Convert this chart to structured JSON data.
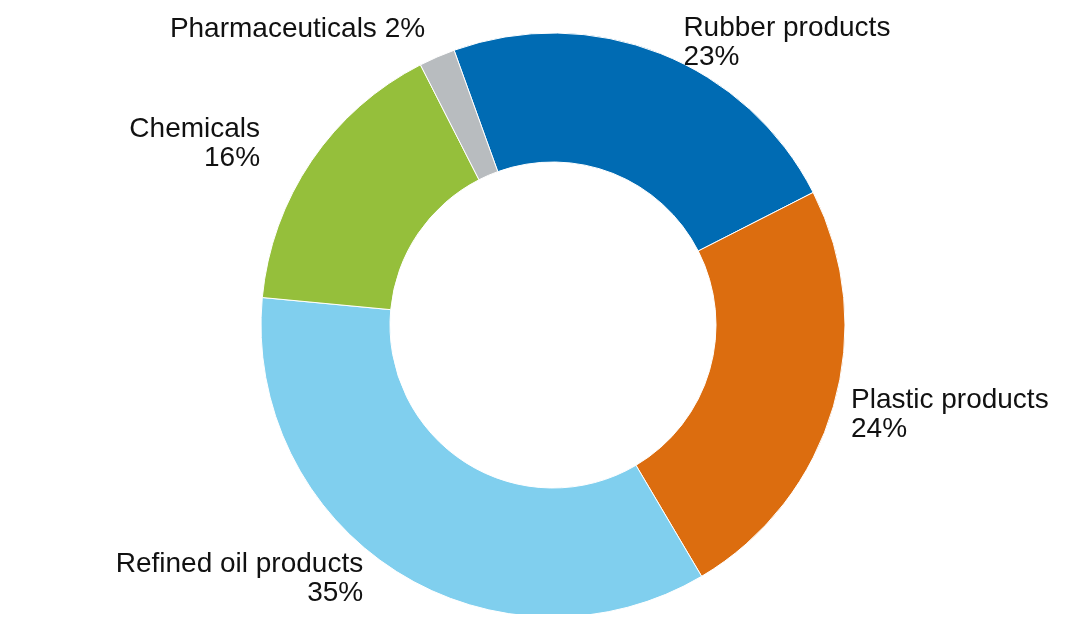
{
  "chart_data": {
    "type": "donut",
    "categories": [
      "Rubber products",
      "Plastic products",
      "Refined oil products",
      "Chemicals",
      "Pharmaceuticals"
    ],
    "values": [
      23,
      24,
      35,
      16,
      2
    ],
    "colors": [
      "#006bb3",
      "#dc6d0f",
      "#80cfee",
      "#95bf3b",
      "#b8bcbf"
    ],
    "value_labels": [
      "23%",
      "24%",
      "35%",
      "16%",
      "2%"
    ]
  }
}
